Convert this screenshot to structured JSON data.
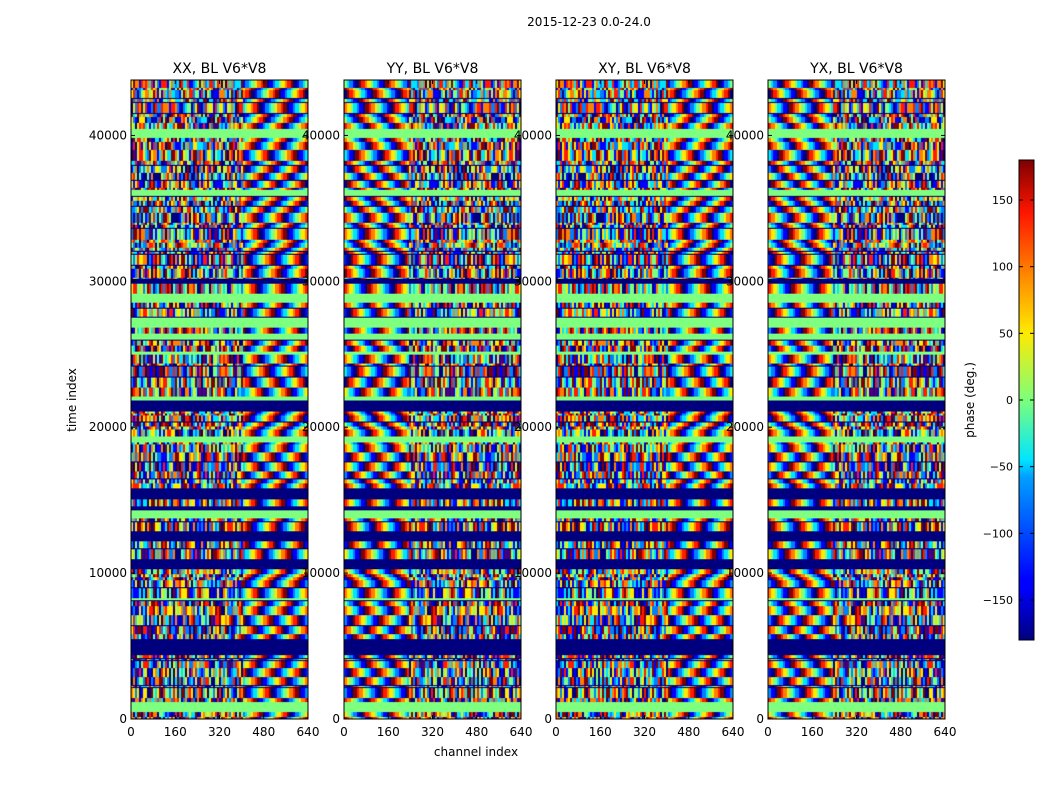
{
  "chart_data": {
    "type": "heatmap",
    "suptitle": "2015-12-23 0.0-24.0",
    "xlabel": "channel index",
    "ylabel": "time index",
    "xlim": [
      0,
      640
    ],
    "ylim": [
      0,
      43800
    ],
    "xticks": [
      0,
      160,
      320,
      480,
      640
    ],
    "yticks": [
      0,
      10000,
      20000,
      30000,
      40000
    ],
    "colormap": "jet",
    "colorbar": {
      "label": "phase (deg.)",
      "range": [
        -180,
        180
      ],
      "ticks": [
        -150,
        -100,
        -50,
        0,
        50,
        100,
        150
      ],
      "tick_labels": [
        "−150",
        "−100",
        "−50",
        "0",
        "50",
        "100",
        "150"
      ]
    },
    "panels": [
      {
        "title": "XX, BL V6*V8",
        "polarization": "XX",
        "baseline": "V6*V8"
      },
      {
        "title": "YY, BL V6*V8",
        "polarization": "YY",
        "baseline": "V6*V8"
      },
      {
        "title": "XY, BL V6*V8",
        "polarization": "XY",
        "baseline": "V6*V8"
      },
      {
        "title": "YX, BL V6*V8",
        "polarization": "YX",
        "baseline": "V6*V8"
      }
    ],
    "texture_colors": [
      "#00007f",
      "#0000ff",
      "#0080ff",
      "#00e5ff",
      "#7fff7f",
      "#ffea00",
      "#ff8000",
      "#ff1a00",
      "#7f0000"
    ],
    "flat_color": "#7fff7f"
  }
}
